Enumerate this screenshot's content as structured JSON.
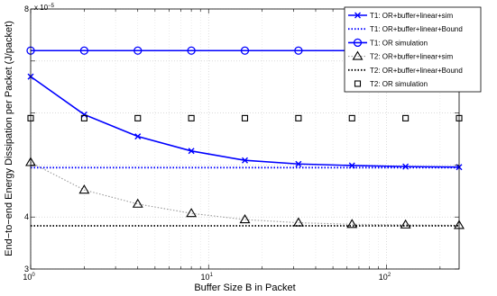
{
  "chart_data": {
    "type": "line",
    "xlabel": "Buffer Size B in Packet",
    "ylabel": "End−to−end Energy Dissipation per Packet (J/packet)",
    "y_exponent_label": "x 10",
    "y_exponent": "−5",
    "x_scale": "log",
    "xlim": [
      1,
      256
    ],
    "ylim": [
      3e-05,
      8e-05
    ],
    "grid": true,
    "legend_position": "top-right",
    "x_ticks": [
      {
        "value": 1,
        "base": "10",
        "exp": "0"
      },
      {
        "value": 10,
        "base": "10",
        "exp": "1"
      },
      {
        "value": 100,
        "base": "10",
        "exp": "2"
      }
    ],
    "y_ticks": [
      {
        "value": 3e-05,
        "label": "3"
      },
      {
        "value": 4e-05,
        "label": "4"
      },
      {
        "value": 8e-05,
        "label": "8"
      }
    ],
    "series": [
      {
        "name": "T1: OR+buffer+linear+sim",
        "color": "#0000ff",
        "line": "solid",
        "marker": "x",
        "width": 1.6,
        "x": [
          1,
          2,
          4,
          8,
          16,
          32,
          64,
          128,
          256
        ],
        "y": [
          6.7e-05,
          5.97e-05,
          5.55e-05,
          5.27e-05,
          5.09e-05,
          5.02e-05,
          4.99e-05,
          4.97e-05,
          4.96e-05
        ]
      },
      {
        "name": "T1: OR+buffer+linear+Bound",
        "color": "#0000ff",
        "line": "dotted",
        "marker": "none",
        "width": 1.8,
        "x": [
          1,
          256
        ],
        "y": [
          4.95e-05,
          4.95e-05
        ]
      },
      {
        "name": "T1: OR simulation",
        "color": "#0000ff",
        "line": "solid",
        "marker": "circle",
        "width": 1.6,
        "x": [
          1,
          2,
          4,
          8,
          16,
          32,
          64,
          128,
          256
        ],
        "y": [
          7.2e-05,
          7.2e-05,
          7.2e-05,
          7.2e-05,
          7.2e-05,
          7.2e-05,
          7.2e-05,
          7.2e-05,
          7.2e-05
        ]
      },
      {
        "name": "T2: OR+buffer+linear+sim",
        "color": "#999999",
        "marker_color": "#000000",
        "line": "dotted",
        "marker": "triangle",
        "width": 1.1,
        "x": [
          1,
          2,
          4,
          8,
          16,
          32,
          64,
          128,
          256
        ],
        "y": [
          5.05e-05,
          4.52e-05,
          4.25e-05,
          4.07e-05,
          3.95e-05,
          3.89e-05,
          3.86e-05,
          3.85e-05,
          3.84e-05
        ]
      },
      {
        "name": "T2: OR+buffer+linear+Bound",
        "color": "#000000",
        "line": "dotted",
        "marker": "none",
        "width": 1.8,
        "x": [
          1,
          256
        ],
        "y": [
          3.83e-05,
          3.83e-05
        ]
      },
      {
        "name": "T2: OR simulation",
        "color": "#000000",
        "line": "none",
        "marker": "square",
        "width": 1,
        "x": [
          1,
          2,
          4,
          8,
          16,
          32,
          64,
          128,
          256
        ],
        "y": [
          5.9e-05,
          5.9e-05,
          5.9e-05,
          5.9e-05,
          5.9e-05,
          5.9e-05,
          5.9e-05,
          5.9e-05,
          5.9e-05
        ]
      }
    ]
  }
}
